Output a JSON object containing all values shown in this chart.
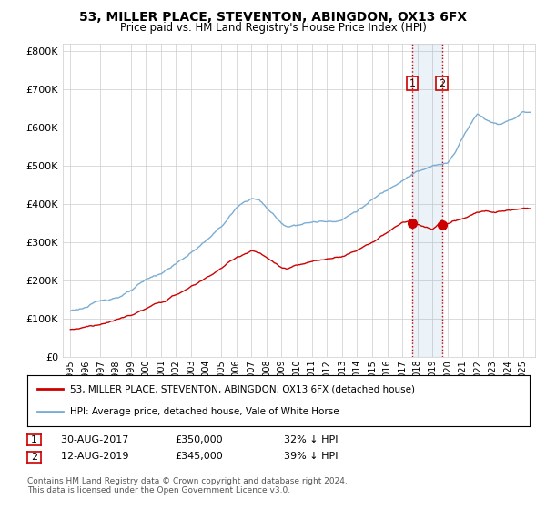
{
  "title": "53, MILLER PLACE, STEVENTON, ABINGDON, OX13 6FX",
  "subtitle": "Price paid vs. HM Land Registry's House Price Index (HPI)",
  "red_label": "53, MILLER PLACE, STEVENTON, ABINGDON, OX13 6FX (detached house)",
  "blue_label": "HPI: Average price, detached house, Vale of White Horse",
  "red_color": "#cc0000",
  "blue_color": "#7aadd4",
  "sale1_label": "1",
  "sale1_date": "30-AUG-2017",
  "sale1_price": "£350,000",
  "sale1_hpi": "32% ↓ HPI",
  "sale1_year": 2017.67,
  "sale1_value": 350000,
  "sale2_label": "2",
  "sale2_date": "12-AUG-2019",
  "sale2_price": "£345,000",
  "sale2_hpi": "39% ↓ HPI",
  "sale2_year": 2019.62,
  "sale2_value": 345000,
  "vline_color": "#cc0000",
  "footnote": "Contains HM Land Registry data © Crown copyright and database right 2024.\nThis data is licensed under the Open Government Licence v3.0.",
  "ylim": [
    0,
    820000
  ],
  "yticks": [
    0,
    100000,
    200000,
    300000,
    400000,
    500000,
    600000,
    700000,
    800000
  ],
  "xlim_left": 1994.5,
  "xlim_right": 2025.8,
  "background_color": "#ffffff",
  "grid_color": "#cccccc",
  "hpi_anchors_x": [
    1995,
    1996,
    1997,
    1998,
    1999,
    2000,
    2001,
    2002,
    2003,
    2004,
    2005,
    2006,
    2007,
    2007.5,
    2008,
    2008.5,
    2009,
    2009.5,
    2010,
    2011,
    2012,
    2013,
    2014,
    2015,
    2016,
    2017,
    2017.5,
    2018,
    2018.5,
    2019,
    2019.5,
    2020,
    2020.5,
    2021,
    2021.5,
    2022,
    2022.5,
    2023,
    2023.5,
    2024,
    2024.5,
    2025
  ],
  "hpi_anchors_y": [
    120000,
    130000,
    142000,
    155000,
    170000,
    192000,
    210000,
    235000,
    262000,
    295000,
    330000,
    375000,
    400000,
    395000,
    375000,
    355000,
    330000,
    325000,
    332000,
    338000,
    340000,
    348000,
    372000,
    398000,
    422000,
    455000,
    468000,
    478000,
    482000,
    488000,
    492000,
    500000,
    525000,
    565000,
    600000,
    630000,
    618000,
    608000,
    605000,
    615000,
    625000,
    640000
  ],
  "red_anchors_x": [
    1995,
    1996,
    1997,
    1998,
    1999,
    2000,
    2001,
    2002,
    2003,
    2004,
    2005,
    2006,
    2007,
    2007.5,
    2008,
    2008.5,
    2009,
    2009.5,
    2010,
    2011,
    2012,
    2013,
    2014,
    2015,
    2016,
    2017,
    2017.67,
    2018,
    2018.5,
    2019,
    2019.62,
    2020,
    2021,
    2022,
    2023,
    2024,
    2025
  ],
  "red_anchors_y": [
    72000,
    80000,
    90000,
    100000,
    112000,
    128000,
    142000,
    162000,
    182000,
    205000,
    232000,
    258000,
    278000,
    272000,
    258000,
    242000,
    228000,
    225000,
    232000,
    240000,
    245000,
    255000,
    272000,
    295000,
    318000,
    342000,
    350000,
    338000,
    328000,
    322000,
    345000,
    335000,
    348000,
    362000,
    370000,
    378000,
    388000
  ]
}
